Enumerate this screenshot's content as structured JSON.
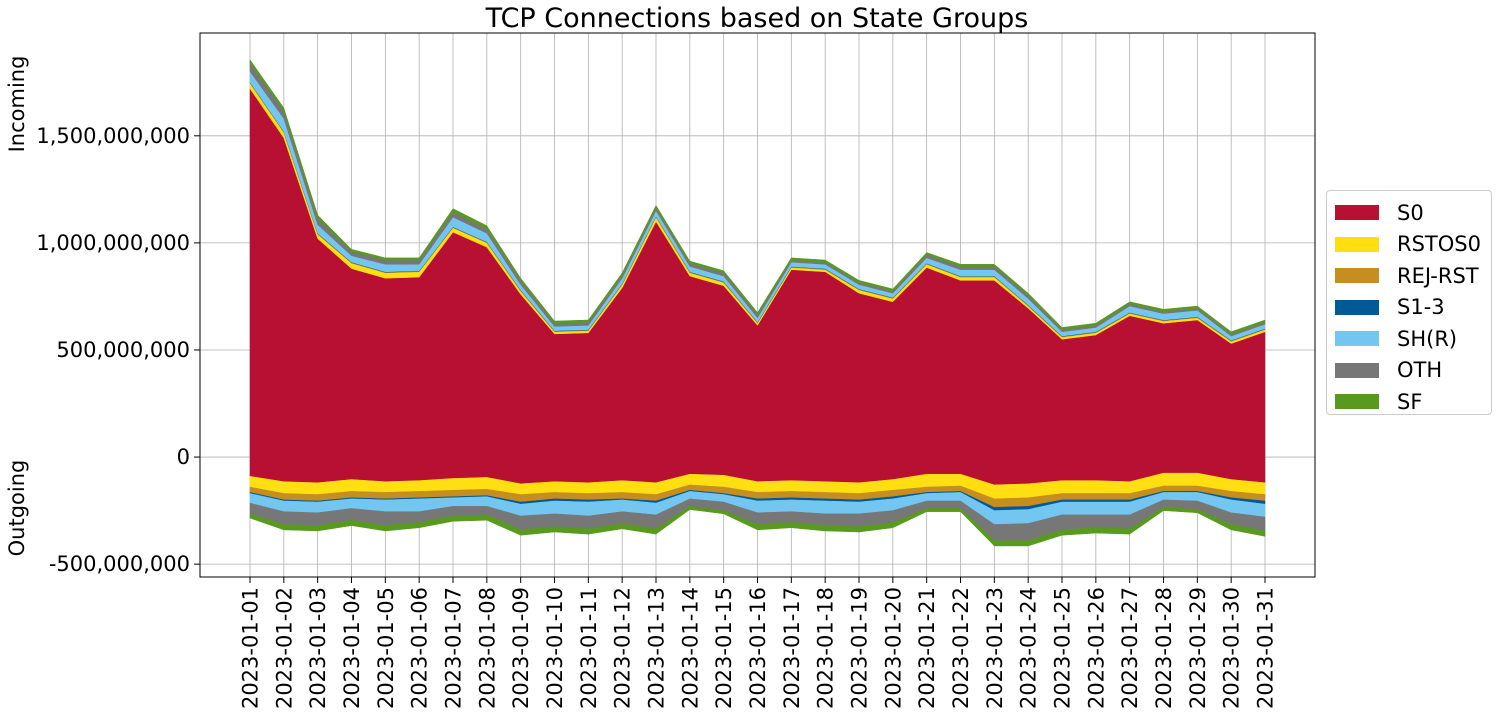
{
  "chart_data": {
    "type": "area",
    "title": "TCP Connections based on State Groups",
    "ylabel_upper": "Incoming",
    "ylabel_lower": "Outgoing",
    "xlabel": "",
    "x": [
      "2023-01-01",
      "2023-01-02",
      "2023-01-03",
      "2023-01-04",
      "2023-01-05",
      "2023-01-06",
      "2023-01-07",
      "2023-01-08",
      "2023-01-09",
      "2023-01-10",
      "2023-01-11",
      "2023-01-12",
      "2023-01-13",
      "2023-01-14",
      "2023-01-15",
      "2023-01-16",
      "2023-01-17",
      "2023-01-18",
      "2023-01-19",
      "2023-01-20",
      "2023-01-21",
      "2023-01-22",
      "2023-01-23",
      "2023-01-24",
      "2023-01-25",
      "2023-01-26",
      "2023-01-27",
      "2023-01-28",
      "2023-01-29",
      "2023-01-30",
      "2023-01-31"
    ],
    "y_ticks": [
      -500000000,
      0,
      500000000,
      1000000000,
      1500000000
    ],
    "y_tick_labels": [
      "-500,000,000",
      "0",
      "500,000,000",
      "1,000,000,000",
      "1,500,000,000"
    ],
    "ylim": [
      -560000000,
      1980000000
    ],
    "grid": true,
    "legend_position": "right",
    "series": [
      {
        "name": "S0",
        "color": "#b81032",
        "incoming": [
          1720000000,
          1490000000,
          1020000000,
          880000000,
          835000000,
          840000000,
          1050000000,
          980000000,
          760000000,
          575000000,
          580000000,
          790000000,
          1100000000,
          845000000,
          800000000,
          615000000,
          875000000,
          865000000,
          765000000,
          725000000,
          885000000,
          825000000,
          825000000,
          695000000,
          550000000,
          570000000,
          660000000,
          625000000,
          640000000,
          530000000,
          585000000
        ],
        "outgoing": [
          -90000000,
          -115000000,
          -120000000,
          -105000000,
          -115000000,
          -110000000,
          -100000000,
          -95000000,
          -125000000,
          -115000000,
          -120000000,
          -110000000,
          -120000000,
          -80000000,
          -85000000,
          -115000000,
          -110000000,
          -115000000,
          -120000000,
          -105000000,
          -80000000,
          -80000000,
          -130000000,
          -125000000,
          -110000000,
          -110000000,
          -115000000,
          -75000000,
          -75000000,
          -105000000,
          -120000000
        ]
      },
      {
        "name": "RSTOS0",
        "color": "#ffdf12",
        "incoming": [
          25000000,
          25000000,
          20000000,
          25000000,
          25000000,
          25000000,
          20000000,
          20000000,
          15000000,
          10000000,
          10000000,
          15000000,
          20000000,
          15000000,
          15000000,
          10000000,
          10000000,
          10000000,
          15000000,
          15000000,
          15000000,
          15000000,
          15000000,
          10000000,
          10000000,
          10000000,
          10000000,
          10000000,
          10000000,
          10000000,
          10000000
        ],
        "outgoing": [
          -50000000,
          -55000000,
          -55000000,
          -55000000,
          -50000000,
          -50000000,
          -55000000,
          -55000000,
          -50000000,
          -50000000,
          -50000000,
          -55000000,
          -55000000,
          -50000000,
          -55000000,
          -50000000,
          -50000000,
          -50000000,
          -50000000,
          -50000000,
          -60000000,
          -55000000,
          -65000000,
          -65000000,
          -60000000,
          -60000000,
          -55000000,
          -60000000,
          -60000000,
          -55000000,
          -55000000
        ]
      },
      {
        "name": "REJ-RST",
        "color": "#c68e1f",
        "incoming": [
          3000000,
          3000000,
          3000000,
          3000000,
          3000000,
          3000000,
          3000000,
          3000000,
          3000000,
          3000000,
          3000000,
          3000000,
          3000000,
          3000000,
          3000000,
          3000000,
          3000000,
          3000000,
          3000000,
          3000000,
          3000000,
          3000000,
          3000000,
          3000000,
          3000000,
          3000000,
          3000000,
          3000000,
          3000000,
          3000000,
          3000000
        ],
        "outgoing": [
          -25000000,
          -30000000,
          -30000000,
          -30000000,
          -30000000,
          -30000000,
          -30000000,
          -30000000,
          -35000000,
          -30000000,
          -30000000,
          -30000000,
          -30000000,
          -25000000,
          -30000000,
          -30000000,
          -30000000,
          -30000000,
          -30000000,
          -30000000,
          -25000000,
          -25000000,
          -40000000,
          -40000000,
          -30000000,
          -30000000,
          -30000000,
          -25000000,
          -25000000,
          -30000000,
          -30000000
        ]
      },
      {
        "name": "S1-3",
        "color": "#005a96",
        "incoming": [
          2000000,
          2000000,
          2000000,
          2000000,
          2000000,
          2000000,
          2000000,
          2000000,
          2000000,
          2000000,
          2000000,
          2000000,
          2000000,
          2000000,
          2000000,
          2000000,
          2000000,
          2000000,
          2000000,
          2000000,
          2000000,
          2000000,
          2000000,
          2000000,
          2000000,
          2000000,
          2000000,
          2000000,
          2000000,
          2000000,
          2000000
        ],
        "outgoing": [
          -5000000,
          -5000000,
          -5000000,
          -5000000,
          -5000000,
          -5000000,
          -5000000,
          -5000000,
          -10000000,
          -10000000,
          -10000000,
          -5000000,
          -10000000,
          -5000000,
          -5000000,
          -10000000,
          -10000000,
          -10000000,
          -10000000,
          -10000000,
          -5000000,
          -5000000,
          -15000000,
          -15000000,
          -10000000,
          -10000000,
          -10000000,
          -5000000,
          -5000000,
          -10000000,
          -15000000
        ]
      },
      {
        "name": "SH(R)",
        "color": "#72c6f0",
        "incoming": [
          50000000,
          60000000,
          40000000,
          30000000,
          35000000,
          30000000,
          45000000,
          40000000,
          25000000,
          20000000,
          20000000,
          25000000,
          25000000,
          25000000,
          25000000,
          20000000,
          20000000,
          20000000,
          20000000,
          20000000,
          25000000,
          30000000,
          30000000,
          30000000,
          20000000,
          20000000,
          30000000,
          30000000,
          30000000,
          20000000,
          20000000
        ],
        "outgoing": [
          -45000000,
          -50000000,
          -50000000,
          -45000000,
          -55000000,
          -60000000,
          -40000000,
          -45000000,
          -55000000,
          -60000000,
          -65000000,
          -55000000,
          -55000000,
          -35000000,
          -35000000,
          -55000000,
          -55000000,
          -60000000,
          -55000000,
          -55000000,
          -35000000,
          -40000000,
          -65000000,
          -65000000,
          -60000000,
          -60000000,
          -60000000,
          -35000000,
          -40000000,
          -60000000,
          -60000000
        ]
      },
      {
        "name": "OTH",
        "color": "#777777",
        "incoming": [
          40000000,
          35000000,
          30000000,
          20000000,
          20000000,
          20000000,
          25000000,
          20000000,
          20000000,
          15000000,
          15000000,
          15000000,
          15000000,
          15000000,
          15000000,
          15000000,
          10000000,
          10000000,
          10000000,
          10000000,
          15000000,
          15000000,
          15000000,
          15000000,
          10000000,
          10000000,
          10000000,
          10000000,
          10000000,
          10000000,
          10000000
        ],
        "outgoing": [
          -50000000,
          -60000000,
          -60000000,
          -55000000,
          -65000000,
          -50000000,
          -45000000,
          -40000000,
          -65000000,
          -60000000,
          -60000000,
          -55000000,
          -65000000,
          -35000000,
          -40000000,
          -55000000,
          -50000000,
          -55000000,
          -60000000,
          -55000000,
          -35000000,
          -35000000,
          -75000000,
          -80000000,
          -70000000,
          -60000000,
          -65000000,
          -35000000,
          -40000000,
          -55000000,
          -65000000
        ]
      },
      {
        "name": "SF",
        "color": "#579a1d",
        "incoming": [
          15000000,
          15000000,
          15000000,
          10000000,
          10000000,
          10000000,
          15000000,
          15000000,
          10000000,
          10000000,
          10000000,
          10000000,
          10000000,
          10000000,
          10000000,
          10000000,
          10000000,
          10000000,
          10000000,
          10000000,
          10000000,
          10000000,
          10000000,
          10000000,
          10000000,
          10000000,
          10000000,
          10000000,
          10000000,
          10000000,
          10000000
        ],
        "outgoing": [
          -20000000,
          -25000000,
          -25000000,
          -25000000,
          -25000000,
          -25000000,
          -25000000,
          -25000000,
          -25000000,
          -25000000,
          -25000000,
          -25000000,
          -25000000,
          -15000000,
          -15000000,
          -25000000,
          -25000000,
          -25000000,
          -25000000,
          -25000000,
          -15000000,
          -15000000,
          -25000000,
          -25000000,
          -25000000,
          -25000000,
          -25000000,
          -15000000,
          -15000000,
          -25000000,
          -25000000
        ]
      }
    ]
  }
}
